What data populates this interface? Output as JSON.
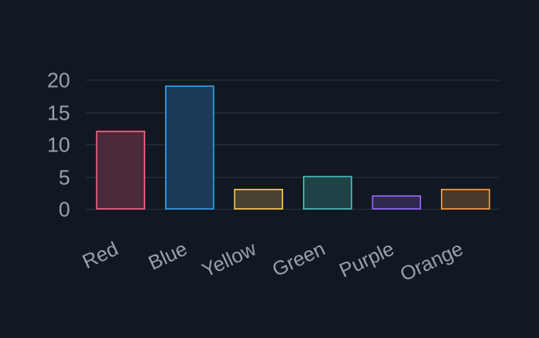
{
  "colors": {
    "background": "#111821",
    "grid": "#24303d",
    "tick_text": "#98a0b0"
  },
  "chart_data": {
    "type": "bar",
    "title": "",
    "xlabel": "",
    "ylabel": "",
    "categories": [
      "Red",
      "Blue",
      "Yellow",
      "Green",
      "Purple",
      "Orange"
    ],
    "values": [
      12,
      19,
      3,
      5,
      2,
      3
    ],
    "ylim": [
      0,
      20
    ],
    "yticks": [
      0,
      5,
      10,
      15,
      20
    ],
    "grid": true,
    "legend": "none",
    "bar_colors": [
      {
        "fill": "#4a2a3a",
        "stroke": "#ff6384"
      },
      {
        "fill": "#1b3a58",
        "stroke": "#36a2eb"
      },
      {
        "fill": "#4a4232",
        "stroke": "#ffce56"
      },
      {
        "fill": "#1f4246",
        "stroke": "#4bc0c0"
      },
      {
        "fill": "#30294f",
        "stroke": "#9966ff"
      },
      {
        "fill": "#4a3a2c",
        "stroke": "#ff9f40"
      }
    ]
  }
}
